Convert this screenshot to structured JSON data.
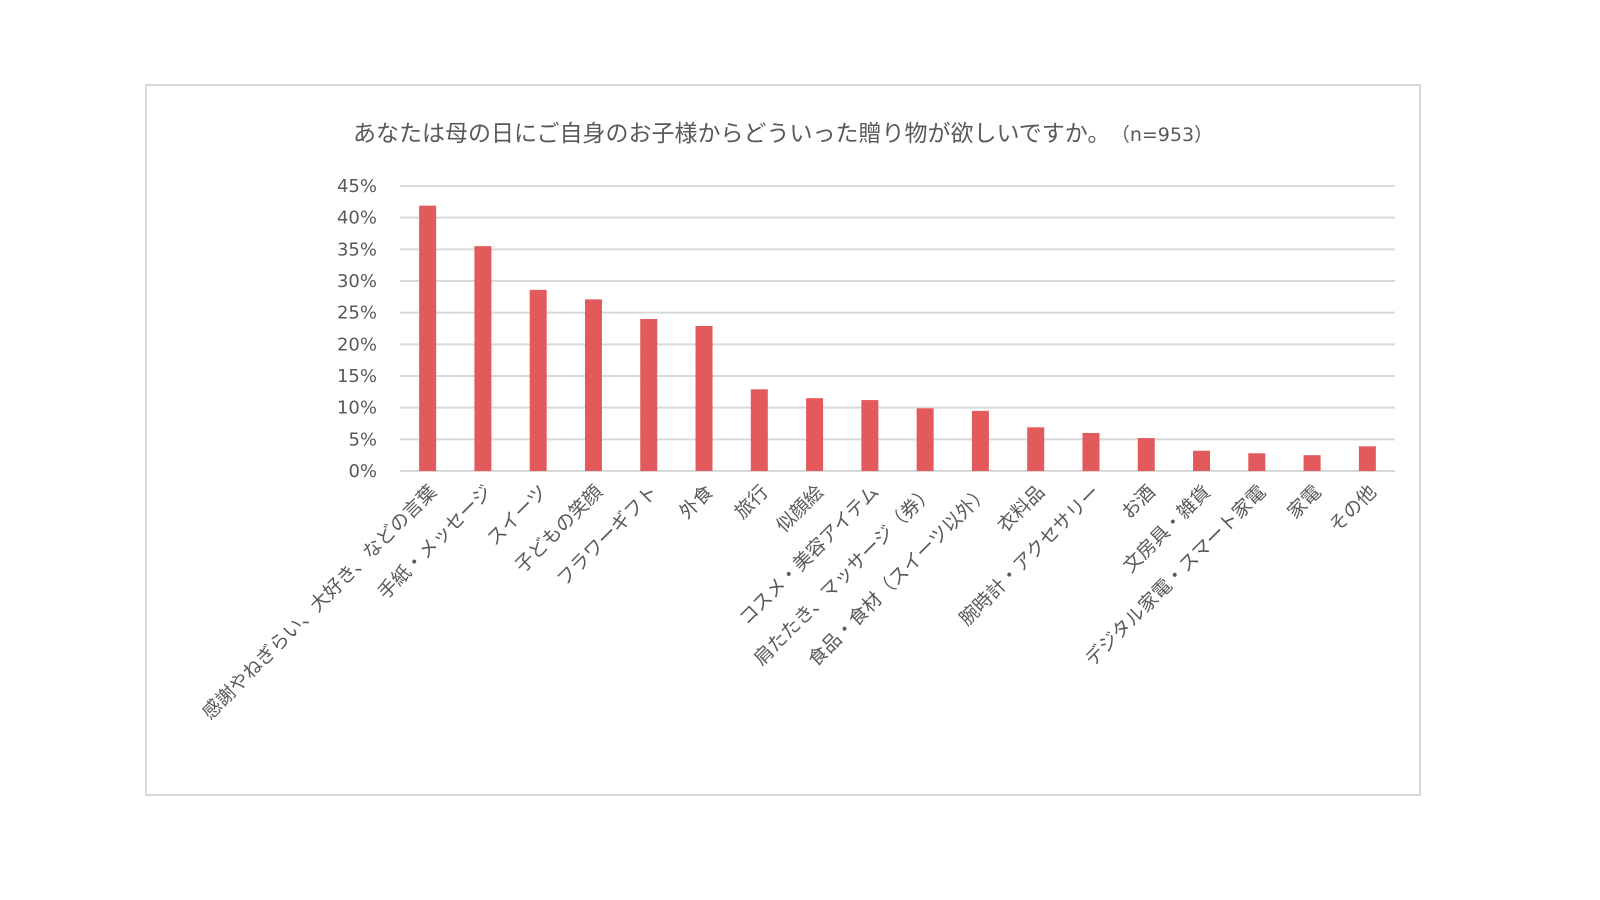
{
  "chart_data": {
    "type": "bar",
    "title": "あなたは母の日にご自身のお子様からどういった贈り物が欲しいですか。",
    "subtitle": "（n=953）",
    "xlabel": "",
    "ylabel": "",
    "ylim": [
      0,
      45
    ],
    "yticks": [
      "0%",
      "5%",
      "10%",
      "15%",
      "20%",
      "25%",
      "30%",
      "35%",
      "40%",
      "45%"
    ],
    "grid": true,
    "legend": "none",
    "bar_color": "#e35a5c",
    "categories": [
      "感謝やねぎらい、大好き、などの言葉",
      "手紙・メッセージ",
      "スイーツ",
      "子どもの笑顔",
      "フラワーギフト",
      "外食",
      "旅行",
      "似顔絵",
      "コスメ・美容アイテム",
      "肩たたき、マッサージ（券）",
      "食品・食材（スイーツ以外）",
      "衣料品",
      "腕時計・アクセサリー",
      "お酒",
      "文房具・雑貨",
      "デジタル家電・スマート家電",
      "家電",
      "その他"
    ],
    "values": [
      41.9,
      35.5,
      28.6,
      27.1,
      24.0,
      22.9,
      12.9,
      11.5,
      11.2,
      9.9,
      9.5,
      6.9,
      6.0,
      5.2,
      3.2,
      2.8,
      2.5,
      3.9
    ]
  }
}
